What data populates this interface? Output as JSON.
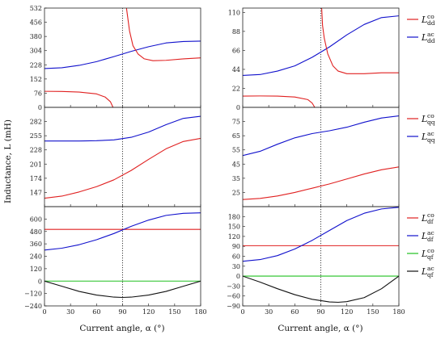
{
  "figure": {
    "xlabel": "Current angle, α (°)",
    "ylabel": "Inductance, L (mH)"
  },
  "chart_data": [
    {
      "type": "line",
      "id": "left-dd",
      "column": "left",
      "row": "dd",
      "xlim": [
        0,
        180
      ],
      "ylim": [
        0,
        532
      ],
      "yticks": [
        "0",
        "76",
        "152",
        "228",
        "304",
        "380",
        "456",
        "532"
      ],
      "vline_x": 90,
      "legend": [
        {
          "base": "L",
          "sup": "co",
          "sub": "dd",
          "color": "#e02020"
        },
        {
          "base": "L",
          "sup": "ac",
          "sub": "dd",
          "color": "#1010cc"
        }
      ],
      "series": [
        {
          "color": "#1010cc",
          "x": [
            0,
            20,
            40,
            60,
            80,
            100,
            120,
            140,
            160,
            180
          ],
          "y": [
            208,
            212,
            225,
            245,
            272,
            300,
            325,
            345,
            353,
            355
          ]
        },
        {
          "color": "#e02020",
          "x": [
            0,
            20,
            40,
            60,
            70,
            76,
            79
          ],
          "y": [
            86,
            85,
            82,
            72,
            55,
            30,
            0
          ]
        },
        {
          "color": "#e02020",
          "x": [
            94.5,
            96,
            98,
            102,
            108,
            115,
            125,
            140,
            160,
            180
          ],
          "y": [
            532,
            480,
            410,
            330,
            285,
            260,
            250,
            252,
            260,
            265
          ]
        }
      ]
    },
    {
      "type": "line",
      "id": "right-dd",
      "column": "right",
      "row": "dd",
      "xlim": [
        0,
        180
      ],
      "ylim": [
        0,
        115
      ],
      "yticks": [
        "0",
        "22",
        "44",
        "66",
        "88",
        "110"
      ],
      "vline_x": 90,
      "series": [
        {
          "color": "#1010cc",
          "x": [
            0,
            20,
            40,
            60,
            80,
            100,
            120,
            140,
            160,
            180
          ],
          "y": [
            37,
            38,
            42,
            48,
            58,
            70,
            84,
            96,
            104,
            106
          ]
        },
        {
          "color": "#e02020",
          "x": [
            0,
            20,
            40,
            60,
            75,
            80,
            83
          ],
          "y": [
            13,
            13.2,
            13,
            12,
            9,
            5,
            0
          ]
        },
        {
          "color": "#e02020",
          "x": [
            91,
            92,
            94,
            98,
            104,
            110,
            120,
            140,
            160,
            180
          ],
          "y": [
            115,
            95,
            80,
            62,
            48,
            42,
            39,
            39,
            40,
            40
          ]
        }
      ]
    },
    {
      "type": "line",
      "id": "left-qq",
      "column": "left",
      "row": "qq",
      "xlim": [
        0,
        180
      ],
      "ylim": [
        120,
        309
      ],
      "yticks": [
        "147",
        "174",
        "201",
        "228",
        "255",
        "282"
      ],
      "vline_x": 90,
      "legend": [
        {
          "base": "L",
          "sup": "co",
          "sub": "qq",
          "color": "#e02020"
        },
        {
          "base": "L",
          "sup": "ac",
          "sub": "qq",
          "color": "#1010cc"
        }
      ],
      "series": [
        {
          "color": "#1010cc",
          "x": [
            0,
            20,
            40,
            60,
            80,
            100,
            120,
            140,
            160,
            180
          ],
          "y": [
            245,
            245,
            245,
            245.5,
            247,
            252,
            262,
            276,
            288,
            292
          ]
        },
        {
          "color": "#e02020",
          "x": [
            0,
            20,
            40,
            60,
            80,
            100,
            120,
            140,
            160,
            180
          ],
          "y": [
            136,
            140,
            148,
            158,
            171,
            189,
            210,
            230,
            244,
            250
          ]
        }
      ]
    },
    {
      "type": "line",
      "id": "right-qq",
      "column": "right",
      "row": "qq",
      "xlim": [
        0,
        180
      ],
      "ylim": [
        15,
        85
      ],
      "yticks": [
        "25",
        "35",
        "45",
        "55",
        "65",
        "75"
      ],
      "vline_x": 90,
      "series": [
        {
          "color": "#1010cc",
          "x": [
            0,
            20,
            40,
            60,
            80,
            100,
            120,
            140,
            160,
            180
          ],
          "y": [
            51,
            54,
            59,
            63.5,
            66.5,
            68.5,
            71,
            74.5,
            77.5,
            79
          ]
        },
        {
          "color": "#e02020",
          "x": [
            0,
            20,
            40,
            60,
            80,
            100,
            120,
            140,
            160,
            180
          ],
          "y": [
            20,
            20.8,
            22.5,
            25,
            28,
            31,
            34.5,
            38,
            41,
            43
          ]
        }
      ]
    },
    {
      "type": "line",
      "id": "left-df",
      "column": "left",
      "row": "df",
      "xlim": [
        0,
        180
      ],
      "ylim": [
        -240,
        720
      ],
      "yticks": [
        "−240",
        "−120",
        "0",
        "120",
        "240",
        "360",
        "480",
        "600"
      ],
      "vline_x": 90,
      "legend": [
        {
          "base": "L",
          "sup": "co",
          "sub": "df",
          "color": "#e02020"
        },
        {
          "base": "L",
          "sup": "ac",
          "sub": "df",
          "color": "#1010cc"
        },
        {
          "base": "L",
          "sup": "co",
          "sub": "qf",
          "color": "#20c020"
        },
        {
          "base": "L",
          "sup": "ac",
          "sub": "qf",
          "color": "#111111"
        }
      ],
      "series": [
        {
          "color": "#e02020",
          "x": [
            0,
            180
          ],
          "y": [
            500,
            500
          ]
        },
        {
          "color": "#1010cc",
          "x": [
            0,
            20,
            40,
            60,
            80,
            100,
            120,
            140,
            160,
            180
          ],
          "y": [
            300,
            318,
            352,
            400,
            460,
            530,
            590,
            635,
            655,
            660
          ]
        },
        {
          "color": "#20c020",
          "x": [
            0,
            180
          ],
          "y": [
            0,
            0
          ]
        },
        {
          "color": "#111111",
          "x": [
            0,
            20,
            40,
            60,
            80,
            90,
            100,
            120,
            140,
            160,
            180
          ],
          "y": [
            0,
            -50,
            -100,
            -135,
            -155,
            -158,
            -155,
            -135,
            -100,
            -50,
            0
          ]
        }
      ]
    },
    {
      "type": "line",
      "id": "right-df",
      "column": "right",
      "row": "df",
      "xlim": [
        0,
        180
      ],
      "ylim": [
        -90,
        210
      ],
      "yticks": [
        "−90",
        "−60",
        "−30",
        "0",
        "30",
        "60",
        "90",
        "120",
        "150",
        "180"
      ],
      "vline_x": 90,
      "series": [
        {
          "color": "#e02020",
          "x": [
            0,
            180
          ],
          "y": [
            92,
            92
          ]
        },
        {
          "color": "#1010cc",
          "x": [
            0,
            20,
            40,
            60,
            80,
            100,
            120,
            140,
            160,
            180
          ],
          "y": [
            45,
            50,
            62,
            82,
            108,
            138,
            168,
            190,
            203,
            208
          ]
        },
        {
          "color": "#20c020",
          "x": [
            0,
            180
          ],
          "y": [
            0,
            0
          ]
        },
        {
          "color": "#111111",
          "x": [
            0,
            20,
            40,
            60,
            80,
            100,
            110,
            120,
            140,
            160,
            180
          ],
          "y": [
            0,
            -18,
            -38,
            -56,
            -70,
            -78,
            -79,
            -77,
            -65,
            -38,
            0
          ]
        }
      ]
    }
  ],
  "xticks": [
    "0",
    "30",
    "60",
    "90",
    "120",
    "150",
    "180"
  ]
}
